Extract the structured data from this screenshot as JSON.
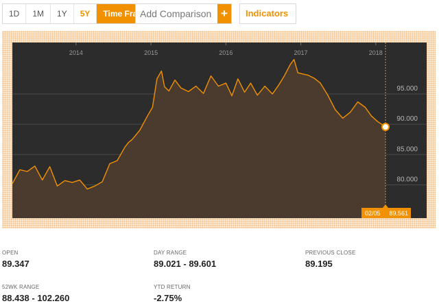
{
  "toolbar": {
    "ranges": [
      "1D",
      "1M",
      "1Y",
      "5Y"
    ],
    "active_range": "5Y",
    "timeframe_label": "Time Frame",
    "comparison_placeholder": "Add Comparison",
    "add_symbol": "+",
    "indicators_label": "Indicators"
  },
  "colors": {
    "accent": "#f29100",
    "chart_bg": "#2c2c2c",
    "line": "#f29100"
  },
  "chart_data": {
    "type": "area",
    "x_ticks": [
      "2014",
      "2015",
      "2016",
      "2017",
      "2018"
    ],
    "y_ticks": [
      "80.000",
      "85.000",
      "90.000",
      "95.000"
    ],
    "ylim": [
      74.5,
      103.5
    ],
    "xlim": [
      2013.15,
      2018.13
    ],
    "grid": true,
    "last_date_label": "02/05",
    "last_value_label": "89.561",
    "series": [
      {
        "x": [
          2013.15,
          2013.25,
          2013.35,
          2013.45,
          2013.55,
          2013.65,
          2013.75,
          2013.85,
          2013.95,
          2014.05,
          2014.15,
          2014.25,
          2014.35,
          2014.45,
          2014.55,
          2014.65,
          2014.7,
          2014.75,
          2014.85,
          2014.95,
          2015.02,
          2015.08,
          2015.14,
          2015.18,
          2015.24,
          2015.32,
          2015.4,
          2015.5,
          2015.6,
          2015.7,
          2015.8,
          2015.9,
          2016.0,
          2016.08,
          2016.16,
          2016.25,
          2016.33,
          2016.42,
          2016.52,
          2016.62,
          2016.7,
          2016.78,
          2016.86,
          2016.91,
          2016.96,
          2017.03,
          2017.1,
          2017.18,
          2017.26,
          2017.36,
          2017.46,
          2017.56,
          2017.66,
          2017.76,
          2017.86,
          2017.94,
          2018.02,
          2018.08,
          2018.13
        ],
        "values": [
          80.2,
          82.5,
          82.2,
          83.1,
          80.8,
          83.0,
          79.8,
          80.7,
          80.4,
          80.8,
          79.3,
          79.8,
          80.5,
          83.5,
          84.0,
          86.2,
          87.0,
          87.5,
          89.0,
          91.3,
          92.8,
          97.5,
          98.8,
          96.2,
          95.5,
          97.3,
          96.0,
          95.4,
          96.3,
          95.1,
          98.0,
          96.3,
          96.8,
          94.7,
          97.5,
          95.3,
          96.8,
          94.8,
          96.3,
          95.0,
          96.4,
          98.0,
          99.9,
          100.7,
          98.5,
          98.3,
          98.1,
          97.6,
          96.8,
          94.8,
          92.4,
          91.0,
          92.0,
          93.7,
          92.8,
          91.4,
          90.5,
          90.0,
          89.561
        ]
      }
    ]
  },
  "stats": [
    {
      "label": "OPEN",
      "value": "89.347"
    },
    {
      "label": "DAY RANGE",
      "value": "89.021 - 89.601"
    },
    {
      "label": "PREVIOUS CLOSE",
      "value": "89.195"
    },
    {
      "label": "52WK RANGE",
      "value": "88.438 - 102.260"
    },
    {
      "label": "YTD RETURN",
      "value": "-2.75%"
    }
  ]
}
